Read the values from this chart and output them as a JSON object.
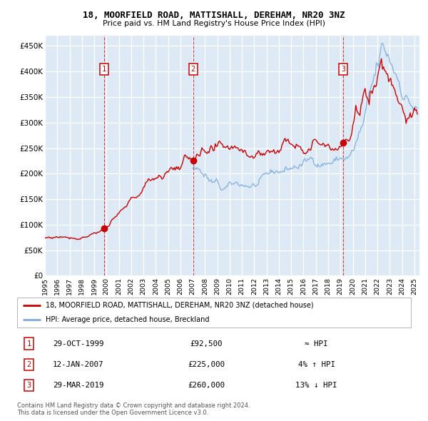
{
  "title": "18, MOORFIELD ROAD, MATTISHALL, DEREHAM, NR20 3NZ",
  "subtitle": "Price paid vs. HM Land Registry's House Price Index (HPI)",
  "ylabel_ticks": [
    "£0",
    "£50K",
    "£100K",
    "£150K",
    "£200K",
    "£250K",
    "£300K",
    "£350K",
    "£400K",
    "£450K"
  ],
  "ytick_vals": [
    0,
    50000,
    100000,
    150000,
    200000,
    250000,
    300000,
    350000,
    400000,
    450000
  ],
  "ylim": [
    0,
    470000
  ],
  "purchases": [
    {
      "date": "1999-10-29",
      "price": 92500,
      "label": "1"
    },
    {
      "date": "2007-01-12",
      "price": 225000,
      "label": "2"
    },
    {
      "date": "2019-03-29",
      "price": 260000,
      "label": "3"
    }
  ],
  "legend_entries": [
    "18, MOORFIELD ROAD, MATTISHALL, DEREHAM, NR20 3NZ (detached house)",
    "HPI: Average price, detached house, Breckland"
  ],
  "red_color": "#cc0000",
  "blue_color": "#7aabdc",
  "bg_color": "#ddeaf6",
  "grid_color": "#ffffff",
  "vline_color": "#cc0000",
  "footnote_line1": "Contains HM Land Registry data © Crown copyright and database right 2024.",
  "footnote_line2": "This data is licensed under the Open Government Licence v3.0.",
  "table_rows": [
    [
      "1",
      "29-OCT-1999",
      "£92,500",
      "≈ HPI"
    ],
    [
      "2",
      "12-JAN-2007",
      "£225,000",
      "4% ↑ HPI"
    ],
    [
      "3",
      "29-MAR-2019",
      "£260,000",
      "13% ↓ HPI"
    ]
  ]
}
